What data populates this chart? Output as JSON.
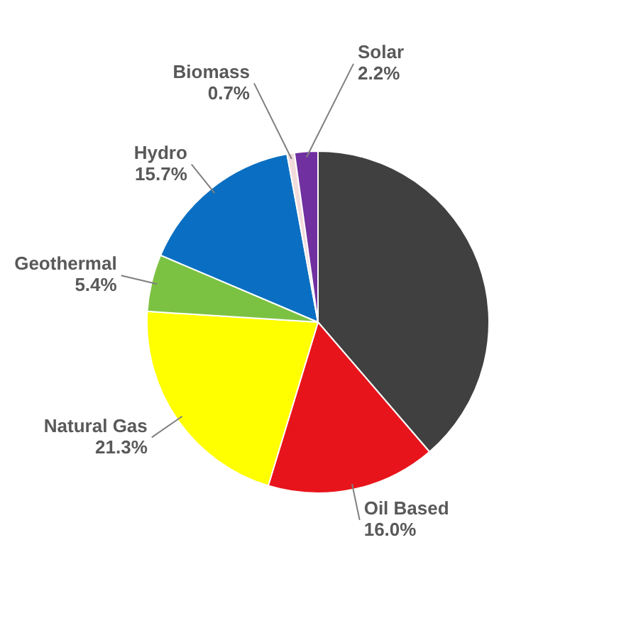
{
  "chart_data": {
    "type": "pie",
    "categories": [
      null,
      "Oil Based",
      "Natural Gas",
      "Geothermal",
      "Hydro",
      "Biomass",
      "Solar"
    ],
    "values": [
      38.7,
      16.0,
      21.3,
      5.4,
      15.7,
      0.7,
      2.2
    ],
    "value_labels": [
      null,
      "16.0%",
      "21.3%",
      "5.4%",
      "15.7%",
      "0.7%",
      "2.2%"
    ],
    "colors": [
      "#404040",
      "#e8141b",
      "#ffff00",
      "#7cc242",
      "#0a6fc2",
      "#f2dcdb",
      "#7030a0"
    ],
    "legend": false
  }
}
